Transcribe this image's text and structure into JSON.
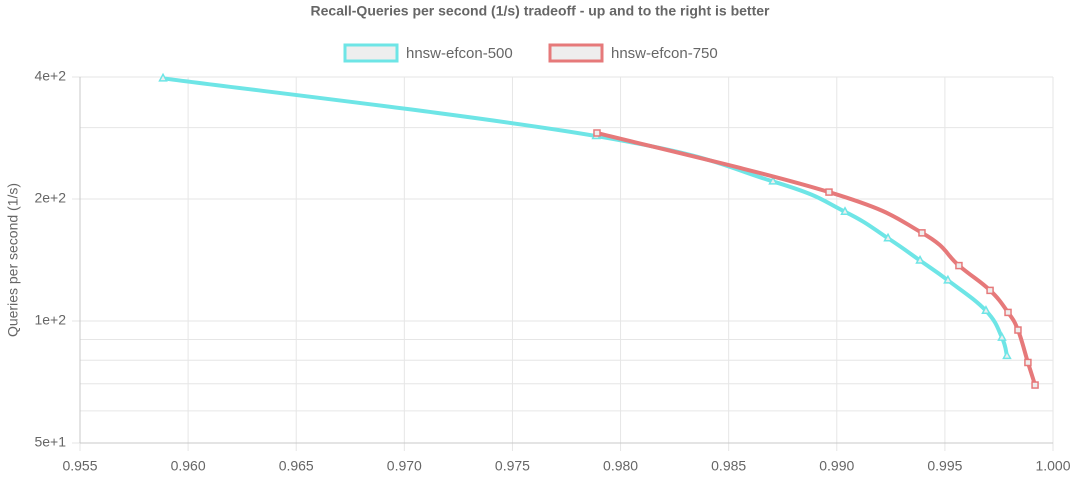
{
  "chart_data": {
    "type": "line",
    "title": "Recall-Queries per second (1/s) tradeoff - up and to the right is better",
    "y_label": "Queries per second (1/s)",
    "log_y": true,
    "grid": true,
    "legend_position": "top",
    "xlim": [
      0.955,
      1.0
    ],
    "xticks": [
      0.955,
      {
        "value": 0.96,
        "label": "0.960"
      },
      0.965,
      {
        "value": 0.97,
        "label": "0.970"
      },
      0.975,
      {
        "value": 0.98,
        "label": "0.980"
      },
      0.985,
      {
        "value": 0.99,
        "label": "0.990"
      },
      0.995,
      {
        "value": 1.0,
        "label": "1.000"
      }
    ],
    "ylim": [
      50,
      400
    ],
    "yticks": [
      {
        "value": 50,
        "label": "5e+1"
      },
      {
        "value": 100,
        "label": "1e+2"
      },
      {
        "value": 200,
        "label": "2e+2"
      },
      {
        "value": 400,
        "label": "4e+2"
      }
    ],
    "y_minor_ticks": [
      60,
      70,
      80,
      90,
      300
    ],
    "series": [
      {
        "name": "hnsw-efcon-500",
        "color": "#6ee5e6",
        "marker": "triangle",
        "x": [
          0.95884,
          0.97887,
          0.98705,
          0.99038,
          0.99237,
          0.99385,
          0.99514,
          0.9969,
          0.99764,
          0.99787
        ],
        "values": [
          397,
          286,
          221,
          186,
          160,
          141,
          126,
          106,
          91,
          82
        ]
      },
      {
        "name": "hnsw-efcon-750",
        "color": "#e6797a",
        "marker": "square",
        "x": [
          0.97891,
          0.98964,
          0.99394,
          0.99565,
          0.99709,
          0.99792,
          0.99838,
          0.99884,
          0.99917
        ],
        "values": [
          291,
          208,
          165,
          137,
          119,
          105,
          95,
          79,
          69.5
        ]
      }
    ]
  }
}
